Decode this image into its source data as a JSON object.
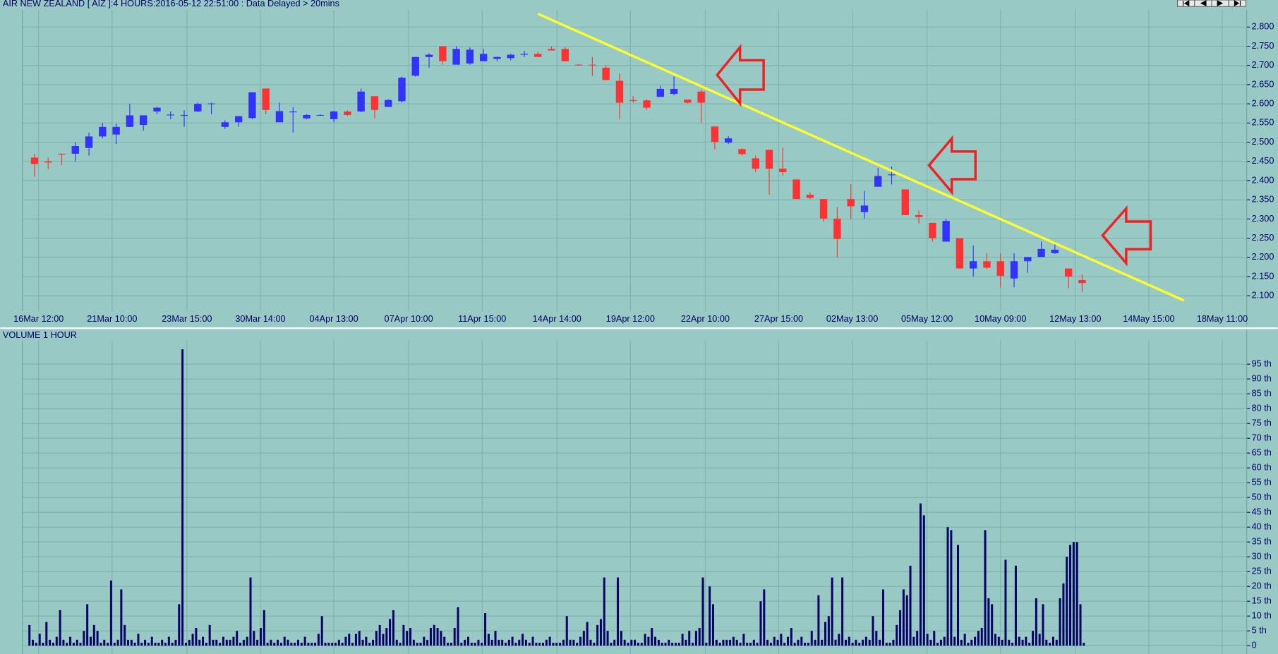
{
  "chart_data": [
    {
      "type": "candlestick",
      "title": "AIR NEW ZEALAND [ AIZ ]:4 HOURS:2016-05-12 22:51:00 : Data Delayed > 20mins",
      "x": [
        0,
        1,
        2,
        3,
        4,
        5,
        6,
        7,
        8,
        9,
        10,
        11,
        12,
        13,
        14,
        15,
        16,
        17,
        18,
        19,
        20,
        21,
        22,
        23,
        24,
        25,
        26,
        27,
        28,
        29,
        30,
        31,
        32,
        33,
        34,
        35,
        36,
        37,
        38,
        39,
        40,
        41,
        42,
        43,
        44,
        45,
        46,
        47,
        48,
        49,
        50,
        51,
        52,
        53,
        54,
        55,
        56,
        57,
        58,
        59,
        60,
        61,
        62,
        63,
        64,
        65,
        66,
        67,
        68,
        69,
        70,
        71,
        72,
        73,
        74,
        75,
        76,
        77
      ],
      "open": [
        2.46,
        2.45,
        2.47,
        2.47,
        2.485,
        2.515,
        2.52,
        2.54,
        2.545,
        2.58,
        2.57,
        2.569,
        2.58,
        2.6,
        2.54,
        2.552,
        2.563,
        2.64,
        2.552,
        2.578,
        2.562,
        2.571,
        2.56,
        2.58,
        2.58,
        2.62,
        2.592,
        2.607,
        2.673,
        2.722,
        2.75,
        2.702,
        2.705,
        2.711,
        2.717,
        2.719,
        2.729,
        2.73,
        2.743,
        2.743,
        2.702,
        2.702,
        2.694,
        2.66,
        2.61,
        2.609,
        2.618,
        2.626,
        2.611,
        2.632,
        2.541,
        2.499,
        2.482,
        2.458,
        2.48,
        2.431,
        2.403,
        2.363,
        2.352,
        2.301,
        2.352,
        2.318,
        2.384,
        2.414,
        2.377,
        2.31,
        2.29,
        2.241,
        2.25,
        2.171,
        2.19,
        2.19,
        2.145,
        2.19,
        2.201,
        2.211,
        2.171,
        2.141
      ],
      "high": [
        2.47,
        2.46,
        2.47,
        2.5,
        2.525,
        2.55,
        2.548,
        2.6,
        2.57,
        2.592,
        2.58,
        2.583,
        2.603,
        2.603,
        2.557,
        2.568,
        2.63,
        2.64,
        2.603,
        2.592,
        2.573,
        2.573,
        2.582,
        2.583,
        2.64,
        2.62,
        2.612,
        2.671,
        2.722,
        2.732,
        2.75,
        2.75,
        2.747,
        2.743,
        2.724,
        2.73,
        2.738,
        2.736,
        2.75,
        2.747,
        2.704,
        2.722,
        2.7,
        2.679,
        2.62,
        2.612,
        2.647,
        2.671,
        2.611,
        2.637,
        2.541,
        2.516,
        2.484,
        2.465,
        2.48,
        2.486,
        2.403,
        2.369,
        2.352,
        2.331,
        2.391,
        2.373,
        2.433,
        2.437,
        2.377,
        2.322,
        2.29,
        2.301,
        2.25,
        2.231,
        2.211,
        2.211,
        2.211,
        2.201,
        2.241,
        2.241,
        2.171,
        2.156
      ],
      "low": [
        2.41,
        2.43,
        2.44,
        2.45,
        2.465,
        2.51,
        2.495,
        2.54,
        2.53,
        2.573,
        2.56,
        2.54,
        2.578,
        2.573,
        2.535,
        2.54,
        2.56,
        2.573,
        2.552,
        2.525,
        2.56,
        2.569,
        2.552,
        2.568,
        2.578,
        2.562,
        2.592,
        2.603,
        2.671,
        2.694,
        2.702,
        2.702,
        2.702,
        2.711,
        2.711,
        2.713,
        2.722,
        2.722,
        2.739,
        2.711,
        2.7,
        2.673,
        2.662,
        2.56,
        2.603,
        2.584,
        2.618,
        2.622,
        2.601,
        2.552,
        2.482,
        2.495,
        2.465,
        2.422,
        2.363,
        2.412,
        2.352,
        2.352,
        2.293,
        2.2,
        2.301,
        2.301,
        2.384,
        2.39,
        2.31,
        2.288,
        2.241,
        2.241,
        2.171,
        2.15,
        2.169,
        2.122,
        2.122,
        2.16,
        2.201,
        2.209,
        2.12,
        2.11
      ],
      "close": [
        2.443,
        2.447,
        2.468,
        2.49,
        2.515,
        2.54,
        2.54,
        2.57,
        2.57,
        2.59,
        2.572,
        2.571,
        2.6,
        2.601,
        2.552,
        2.568,
        2.63,
        2.584,
        2.581,
        2.58,
        2.571,
        2.571,
        2.58,
        2.571,
        2.632,
        2.584,
        2.61,
        2.668,
        2.722,
        2.728,
        2.711,
        2.743,
        2.741,
        2.73,
        2.722,
        2.728,
        2.73,
        2.722,
        2.739,
        2.711,
        2.701,
        2.7,
        2.662,
        2.603,
        2.609,
        2.59,
        2.639,
        2.639,
        2.603,
        2.603,
        2.501,
        2.51,
        2.469,
        2.431,
        2.431,
        2.422,
        2.352,
        2.355,
        2.301,
        2.248,
        2.333,
        2.335,
        2.412,
        2.416,
        2.31,
        2.305,
        2.25,
        2.295,
        2.171,
        2.19,
        2.173,
        2.152,
        2.19,
        2.201,
        2.222,
        2.22,
        2.15,
        2.133
      ],
      "up_color": "#3333ff",
      "down_color": "#ff3333",
      "xlim": [
        -0.9,
        89.1
      ],
      "xticks": [
        {
          "value": 0.3,
          "label": "16Mar 12:00"
        },
        {
          "value": 5.7,
          "label": "21Mar 10:00"
        },
        {
          "value": 11.2,
          "label": "23Mar 15:00"
        },
        {
          "value": 16.6,
          "label": "30Mar 14:00"
        },
        {
          "value": 22.0,
          "label": "04Apr 13:00"
        },
        {
          "value": 27.5,
          "label": "07Apr 10:00"
        },
        {
          "value": 32.9,
          "label": "11Apr 15:00"
        },
        {
          "value": 38.4,
          "label": "14Apr 14:00"
        },
        {
          "value": 43.8,
          "label": "19Apr 12:00"
        },
        {
          "value": 49.3,
          "label": "22Apr 10:00"
        },
        {
          "value": 54.7,
          "label": "27Apr 15:00"
        },
        {
          "value": 60.1,
          "label": "02May 13:00"
        },
        {
          "value": 65.6,
          "label": "05May 12:00"
        },
        {
          "value": 71.0,
          "label": "10May 09:00"
        },
        {
          "value": 76.5,
          "label": "12May 13:00"
        },
        {
          "value": 81.9,
          "label": "14May 15:00"
        },
        {
          "value": 87.3,
          "label": "18May 11:00"
        }
      ],
      "ylim": [
        2.06,
        2.845
      ],
      "yticks": [
        {
          "value": 2.8,
          "label": "2.800"
        },
        {
          "value": 2.75,
          "label": "2.750"
        },
        {
          "value": 2.7,
          "label": "2.700"
        },
        {
          "value": 2.65,
          "label": "2.650"
        },
        {
          "value": 2.6,
          "label": "2.600"
        },
        {
          "value": 2.55,
          "label": "2.550"
        },
        {
          "value": 2.5,
          "label": "2.500"
        },
        {
          "value": 2.45,
          "label": "2.450"
        },
        {
          "value": 2.4,
          "label": "2.400"
        },
        {
          "value": 2.35,
          "label": "2.350"
        },
        {
          "value": 2.3,
          "label": "2.300"
        },
        {
          "value": 2.25,
          "label": "2.250"
        },
        {
          "value": 2.2,
          "label": "2.200"
        },
        {
          "value": 2.15,
          "label": "2.150"
        },
        {
          "value": 2.1,
          "label": "2.100"
        }
      ],
      "grid": true
    },
    {
      "type": "bar",
      "title": "VOLUME 1 HOUR",
      "values": [
        7,
        2,
        1,
        4,
        1,
        8,
        2,
        1,
        3,
        12,
        2,
        1,
        3,
        1,
        2,
        1,
        5,
        14,
        3,
        7,
        5,
        1,
        2,
        1,
        22,
        1,
        2,
        19,
        7,
        2,
        2,
        1,
        4,
        1,
        2,
        1,
        3,
        1,
        1,
        2,
        1,
        3,
        1,
        2,
        14,
        100,
        1,
        2,
        4,
        6,
        2,
        3,
        1,
        7,
        2,
        2,
        1,
        3,
        2,
        2,
        3,
        5,
        1,
        2,
        3,
        23,
        5,
        2,
        6,
        12,
        1,
        2,
        1,
        2,
        1,
        3,
        2,
        1,
        1,
        2,
        1,
        3,
        1,
        1,
        1,
        4,
        10,
        1,
        1,
        1,
        1,
        2,
        1,
        3,
        4,
        1,
        4,
        5,
        2,
        3,
        1,
        2,
        5,
        7,
        4,
        6,
        9,
        12,
        2,
        1,
        7,
        5,
        6,
        2,
        1,
        1,
        3,
        2,
        6,
        7,
        6,
        5,
        3,
        1,
        1,
        6,
        13,
        1,
        2,
        3,
        1,
        1,
        2,
        1,
        11,
        4,
        2,
        5,
        2,
        2,
        1,
        2,
        3,
        1,
        2,
        4,
        2,
        1,
        3,
        1,
        1,
        1,
        2,
        3,
        1,
        1,
        1,
        2,
        10,
        2,
        2,
        1,
        3,
        5,
        8,
        2,
        1,
        7,
        9,
        23,
        5,
        1,
        2,
        23,
        5,
        2,
        1,
        2,
        2,
        1,
        1,
        4,
        3,
        6,
        3,
        2,
        1,
        1,
        2,
        1,
        1,
        1,
        4,
        2,
        5,
        1,
        5,
        6,
        23,
        1,
        20,
        14,
        2,
        1,
        2,
        2,
        2,
        3,
        2,
        1,
        4,
        1,
        1,
        2,
        1,
        15,
        19,
        2,
        1,
        3,
        2,
        4,
        1,
        3,
        6,
        1,
        2,
        3,
        1,
        1,
        5,
        2,
        17,
        2,
        8,
        10,
        23,
        2,
        4,
        23,
        2,
        3,
        1,
        2,
        1,
        2,
        3,
        2,
        10,
        5,
        2,
        19,
        1,
        1,
        2,
        7,
        12,
        19,
        17,
        27,
        3,
        5,
        48,
        44,
        4,
        2,
        5,
        1,
        2,
        3,
        40,
        39,
        3,
        34,
        2,
        4,
        1,
        2,
        3,
        5,
        6,
        39,
        16,
        14,
        4,
        3,
        2,
        29,
        2,
        1,
        27,
        3,
        2,
        3,
        1,
        5,
        16,
        4,
        14,
        2,
        1,
        3,
        2,
        16,
        21,
        30,
        34,
        35,
        35,
        14,
        1,
        0
      ],
      "color": "#000066",
      "ylim": [
        -2.8,
        103
      ],
      "yticks": [
        0,
        {
          "value": 5,
          "label": "5 th"
        },
        {
          "value": 10,
          "label": "10 th"
        },
        {
          "value": 15,
          "label": "15 th"
        },
        {
          "value": 20,
          "label": "20 th"
        },
        {
          "value": 25,
          "label": "25 th"
        },
        {
          "value": 30,
          "label": "30 th"
        },
        {
          "value": 35,
          "label": "35 th"
        },
        {
          "value": 40,
          "label": "40 th"
        },
        {
          "value": 45,
          "label": "45 th"
        },
        {
          "value": 50,
          "label": "50 th"
        },
        {
          "value": 55,
          "label": "55 th"
        },
        {
          "value": 60,
          "label": "60 th"
        },
        {
          "value": 65,
          "label": "65 th"
        },
        {
          "value": 70,
          "label": "70 th"
        },
        {
          "value": 75,
          "label": "75 th"
        },
        {
          "value": 80,
          "label": "80 th"
        },
        {
          "value": 85,
          "label": "85 th"
        },
        {
          "value": 90,
          "label": "90 th"
        },
        {
          "value": 95,
          "label": "95 th"
        }
      ],
      "grid": true
    }
  ]
}
